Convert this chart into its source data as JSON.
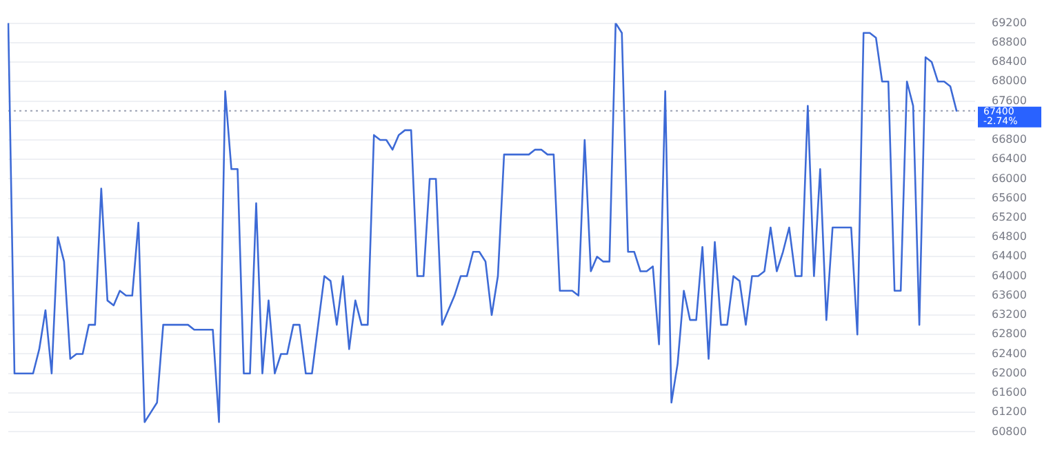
{
  "chart_data": {
    "type": "line",
    "categories": [
      null,
      null,
      null,
      null,
      null,
      null,
      null,
      null,
      null,
      null,
      null,
      null,
      null,
      null,
      null,
      null,
      null,
      null,
      null,
      null,
      null,
      null,
      null,
      null,
      null,
      null,
      null,
      null,
      null,
      null,
      null,
      null,
      null,
      null,
      null,
      null,
      null,
      null,
      null,
      null,
      null,
      null,
      null,
      null,
      null,
      null,
      null,
      null,
      null,
      null,
      null,
      null,
      null,
      null,
      null,
      null,
      null,
      null,
      null,
      null,
      null,
      null,
      null,
      null,
      null,
      null,
      null,
      null,
      null,
      null,
      null,
      null,
      null,
      null,
      null,
      null,
      null,
      null,
      null,
      null,
      null,
      null,
      null,
      null,
      null,
      null,
      null,
      null,
      null,
      null,
      null,
      null,
      null,
      null,
      null,
      null,
      null,
      null,
      null,
      null,
      null,
      null,
      null,
      null,
      null,
      null,
      null,
      null,
      null,
      null,
      null,
      null,
      null,
      null,
      null,
      null,
      null,
      null,
      null,
      null,
      null,
      null,
      null,
      null,
      null,
      null,
      null,
      null,
      null,
      null,
      null,
      null,
      null,
      null,
      null,
      null,
      null,
      null,
      null,
      null,
      null,
      null,
      null,
      null,
      null,
      null,
      null,
      null,
      null,
      null,
      null,
      null,
      null,
      null,
      null,
      null,
      null
    ],
    "series": [
      {
        "color": "#3d6ad6",
        "values": [
          69200,
          62000,
          62000,
          62000,
          62000,
          62500,
          63300,
          62000,
          64800,
          64300,
          62300,
          62400,
          62400,
          63000,
          63000,
          65800,
          63500,
          63400,
          63700,
          63600,
          63600,
          65100,
          61000,
          61200,
          61400,
          63000,
          63000,
          63000,
          63000,
          63000,
          62900,
          62900,
          62900,
          62900,
          61000,
          67800,
          66200,
          66200,
          62000,
          62000,
          65500,
          62000,
          63500,
          62000,
          62400,
          62400,
          63000,
          63000,
          62000,
          62000,
          63000,
          64000,
          63900,
          63000,
          64000,
          62500,
          63500,
          63000,
          63000,
          66900,
          66800,
          66800,
          66600,
          66900,
          67000,
          67000,
          64000,
          64000,
          66000,
          66000,
          63000,
          63300,
          63600,
          64000,
          64000,
          64500,
          64500,
          64300,
          63200,
          64000,
          66500,
          66500,
          66500,
          66500,
          66500,
          66600,
          66600,
          66500,
          66500,
          63700,
          63700,
          63700,
          63600,
          66800,
          64100,
          64400,
          64300,
          64300,
          69200,
          69000,
          64500,
          64500,
          64100,
          64100,
          64200,
          62600,
          67800,
          61400,
          62200,
          63700,
          63100,
          63100,
          64600,
          62300,
          64700,
          63000,
          63000,
          64000,
          63900,
          63000,
          64000,
          64000,
          64100,
          65000,
          64100,
          64500,
          65000,
          64000,
          64000,
          67500,
          64000,
          66200,
          63100,
          65000,
          65000,
          65000,
          65000,
          62800,
          69000,
          69000,
          68900,
          68000,
          68000,
          63700,
          63700,
          68000,
          67500,
          63000,
          68500,
          68400,
          68000,
          68000,
          67900,
          67400,
          null,
          null,
          null
        ]
      }
    ],
    "ylim": [
      60800,
      69200
    ],
    "yticks": [
      60800,
      61200,
      61600,
      62000,
      62400,
      62800,
      63200,
      63600,
      64000,
      64400,
      64800,
      65200,
      65600,
      66000,
      66400,
      66800,
      {
        "value": 67200,
        "label": null
      },
      67600,
      68000,
      68400,
      68800,
      69200
    ],
    "annotations": [
      "-2.74%"
    ],
    "tick_labels": "y",
    "grid": "y",
    "ref_lines": [
      {
        "axis": "y",
        "value": 67400,
        "label": "67400",
        "color": "#9aa1b3",
        "line_style": "dotted"
      }
    ]
  }
}
